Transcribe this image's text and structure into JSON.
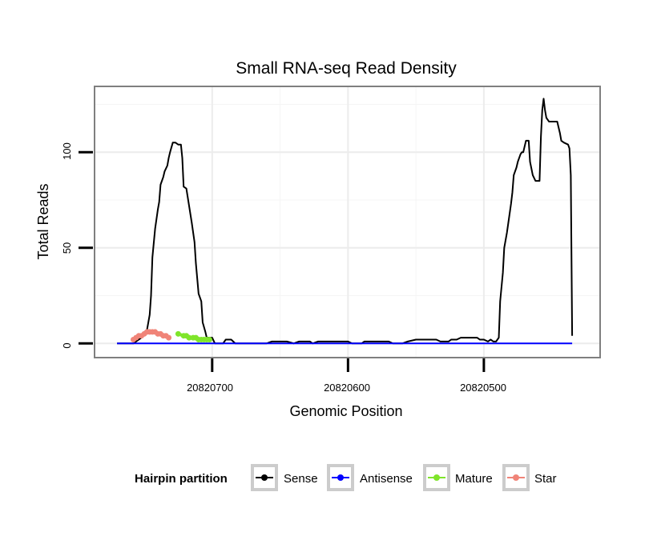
{
  "chart_data": {
    "type": "line",
    "title": "Small RNA-seq Read Density",
    "xlabel": "Genomic Position",
    "ylabel": "Total Reads",
    "x_reversed": true,
    "xlim": [
      20820786,
      20820415
    ],
    "ylim": [
      -7,
      134
    ],
    "x_ticks": [
      20820700,
      20820600,
      20820500
    ],
    "x_tick_labels": [
      "20820700",
      "20820600",
      "20820500"
    ],
    "y_ticks": [
      0,
      50,
      100
    ],
    "y_tick_labels": [
      "0",
      "50",
      "100"
    ],
    "legend": {
      "title": "Hairpin partition",
      "position": "bottom",
      "entries": [
        "Sense",
        "Antisense",
        "Mature",
        "Star"
      ]
    },
    "series": [
      {
        "name": "Sense",
        "color": "#000000",
        "points": [
          [
            20820770,
            0
          ],
          [
            20820758,
            0
          ],
          [
            20820754,
            2
          ],
          [
            20820752,
            3
          ],
          [
            20820750,
            6
          ],
          [
            20820748,
            7
          ],
          [
            20820746,
            15
          ],
          [
            20820745,
            25
          ],
          [
            20820744,
            45
          ],
          [
            20820742,
            60
          ],
          [
            20820740,
            70
          ],
          [
            20820739,
            74
          ],
          [
            20820738,
            83
          ],
          [
            20820736,
            87
          ],
          [
            20820735,
            90
          ],
          [
            20820733,
            93
          ],
          [
            20820732,
            97
          ],
          [
            20820731,
            100
          ],
          [
            20820729,
            105
          ],
          [
            20820727,
            105
          ],
          [
            20820725,
            104
          ],
          [
            20820723,
            104
          ],
          [
            20820722,
            97
          ],
          [
            20820721,
            82
          ],
          [
            20820719,
            81
          ],
          [
            20820717,
            72
          ],
          [
            20820715,
            63
          ],
          [
            20820713,
            53
          ],
          [
            20820712,
            42
          ],
          [
            20820711,
            34
          ],
          [
            20820710,
            26
          ],
          [
            20820708,
            22
          ],
          [
            20820707,
            11
          ],
          [
            20820705,
            6
          ],
          [
            20820704,
            3
          ],
          [
            20820700,
            3
          ],
          [
            20820698,
            0
          ],
          [
            20820692,
            0
          ],
          [
            20820690,
            2
          ],
          [
            20820686,
            2
          ],
          [
            20820683,
            0
          ],
          [
            20820660,
            0
          ],
          [
            20820656,
            1
          ],
          [
            20820645,
            1
          ],
          [
            20820640,
            0
          ],
          [
            20820636,
            1
          ],
          [
            20820628,
            1
          ],
          [
            20820626,
            0
          ],
          [
            20820622,
            1
          ],
          [
            20820600,
            1
          ],
          [
            20820597,
            0
          ],
          [
            20820590,
            0
          ],
          [
            20820588,
            1
          ],
          [
            20820570,
            1
          ],
          [
            20820567,
            0
          ],
          [
            20820560,
            0
          ],
          [
            20820556,
            1
          ],
          [
            20820550,
            2
          ],
          [
            20820535,
            2
          ],
          [
            20820532,
            1
          ],
          [
            20820526,
            1
          ],
          [
            20820524,
            2
          ],
          [
            20820520,
            2
          ],
          [
            20820517,
            3
          ],
          [
            20820505,
            3
          ],
          [
            20820503,
            2
          ],
          [
            20820500,
            2
          ],
          [
            20820497,
            1
          ],
          [
            20820495,
            2
          ],
          [
            20820493,
            1
          ],
          [
            20820491,
            1
          ],
          [
            20820489,
            3
          ],
          [
            20820488,
            22
          ],
          [
            20820486,
            37
          ],
          [
            20820485,
            50
          ],
          [
            20820483,
            58
          ],
          [
            20820482,
            63
          ],
          [
            20820480,
            73
          ],
          [
            20820479,
            79
          ],
          [
            20820478,
            88
          ],
          [
            20820476,
            92
          ],
          [
            20820475,
            95
          ],
          [
            20820473,
            99
          ],
          [
            20820472,
            100
          ],
          [
            20820471,
            100
          ],
          [
            20820469,
            106
          ],
          [
            20820467,
            106
          ],
          [
            20820466,
            95
          ],
          [
            20820464,
            88
          ],
          [
            20820462,
            85
          ],
          [
            20820459,
            85
          ],
          [
            20820458,
            108
          ],
          [
            20820457,
            122
          ],
          [
            20820456,
            128
          ],
          [
            20820455,
            122
          ],
          [
            20820454,
            118
          ],
          [
            20820452,
            116
          ],
          [
            20820446,
            116
          ],
          [
            20820444,
            110
          ],
          [
            20820443,
            106
          ],
          [
            20820441,
            105
          ],
          [
            20820438,
            104
          ],
          [
            20820437,
            102
          ],
          [
            20820436,
            88
          ],
          [
            20820435,
            4
          ]
        ]
      },
      {
        "name": "Antisense",
        "color": "#0000FF",
        "points": [
          [
            20820770,
            0
          ],
          [
            20820435,
            0
          ]
        ]
      },
      {
        "name": "Mature",
        "color": "#7FE52A",
        "points": [
          [
            20820725,
            5
          ],
          [
            20820721,
            4
          ],
          [
            20820719,
            4
          ],
          [
            20820717,
            3
          ],
          [
            20820714,
            3
          ],
          [
            20820712,
            3
          ],
          [
            20820710,
            2
          ],
          [
            20820708,
            2
          ],
          [
            20820706,
            2
          ],
          [
            20820704,
            2
          ],
          [
            20820702,
            2
          ]
        ]
      },
      {
        "name": "Star",
        "color": "#F08478",
        "points": [
          [
            20820758,
            2
          ],
          [
            20820756,
            3
          ],
          [
            20820754,
            4
          ],
          [
            20820752,
            4
          ],
          [
            20820750,
            5
          ],
          [
            20820748,
            6
          ],
          [
            20820746,
            6
          ],
          [
            20820744,
            6
          ],
          [
            20820742,
            6
          ],
          [
            20820740,
            5
          ],
          [
            20820738,
            5
          ],
          [
            20820736,
            4
          ],
          [
            20820734,
            4
          ],
          [
            20820732,
            3
          ]
        ]
      }
    ]
  }
}
